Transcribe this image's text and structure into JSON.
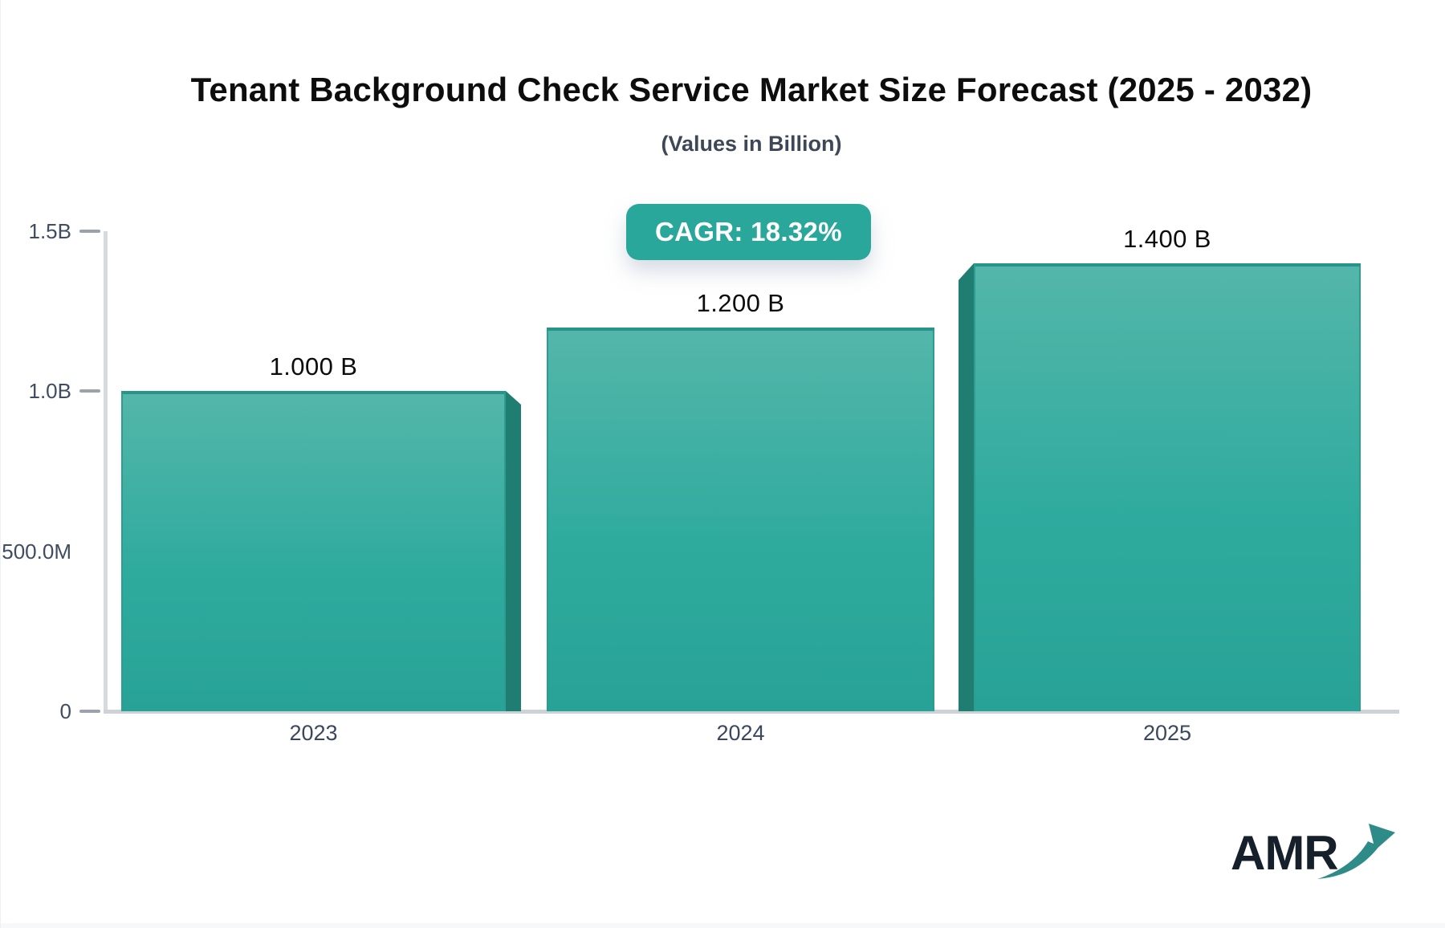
{
  "header": {
    "title": "Tenant Background Check Service Market Size Forecast (2025 - 2032)",
    "subtitle": "(Values in Billion)"
  },
  "badge": {
    "label": "CAGR: 18.32%"
  },
  "chart_data": {
    "type": "bar",
    "title": "Tenant Background Check Service Market Size Forecast (2025 - 2032)",
    "subtitle": "(Values in Billion)",
    "cagr_percent": 18.32,
    "categories": [
      "2023",
      "2024",
      "2025"
    ],
    "values": [
      1.0,
      1.2,
      1.4
    ],
    "value_labels": [
      "1.000 B",
      "1.200 B",
      "1.400 B"
    ],
    "unit": "Billion",
    "ylim": [
      0,
      1.5
    ],
    "yticks": [
      {
        "label": "1.5B",
        "value": 1.5,
        "dash": true
      },
      {
        "label": "1.0B",
        "value": 1.0,
        "dash": true
      },
      {
        "label": "500.0M",
        "value": 0.5,
        "dash": false
      },
      {
        "label": "0",
        "value": 0,
        "dash": true
      }
    ],
    "grid": false,
    "legend": false,
    "colors": {
      "bar_top": "#54b6aa",
      "bar_bottom": "#28a296",
      "bar_side_3d": "#1f7d72",
      "badge_bg": "#2aa79b",
      "axis_line": "#cdd2d9",
      "tick_text": "#3f4c61",
      "value_text": "#0c0c0c"
    }
  },
  "logo": {
    "text": "AMR",
    "arrow_icon": "trending-up-arrow",
    "arrow_color": "#2e8b88"
  }
}
